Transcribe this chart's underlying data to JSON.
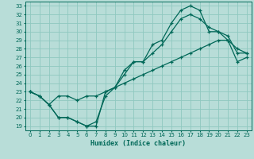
{
  "title": "",
  "xlabel": "Humidex (Indice chaleur)",
  "xlim": [
    -0.5,
    23.5
  ],
  "ylim": [
    18.5,
    33.5
  ],
  "xticks": [
    0,
    1,
    2,
    3,
    4,
    5,
    6,
    7,
    8,
    9,
    10,
    11,
    12,
    13,
    14,
    15,
    16,
    17,
    18,
    19,
    20,
    21,
    22,
    23
  ],
  "yticks": [
    19,
    20,
    21,
    22,
    23,
    24,
    25,
    26,
    27,
    28,
    29,
    30,
    31,
    32,
    33
  ],
  "bg_color": "#b8ddd8",
  "grid_color": "#8fc8c0",
  "line_color": "#006858",
  "curve1_x": [
    0,
    1,
    2,
    3,
    4,
    5,
    6,
    7,
    8,
    9,
    10,
    11,
    12,
    13,
    14,
    15,
    16,
    17,
    18,
    19,
    20,
    21,
    22,
    23
  ],
  "curve1_y": [
    23.0,
    22.5,
    21.5,
    20.0,
    20.0,
    19.5,
    19.0,
    19.0,
    23.0,
    23.5,
    25.5,
    26.5,
    26.5,
    28.5,
    29.0,
    31.0,
    32.5,
    33.0,
    32.5,
    30.0,
    30.0,
    29.5,
    27.5,
    27.5
  ],
  "curve2_x": [
    0,
    1,
    2,
    3,
    4,
    5,
    6,
    7,
    8,
    9,
    10,
    11,
    12,
    13,
    14,
    15,
    16,
    17,
    18,
    19,
    20,
    21,
    22,
    23
  ],
  "curve2_y": [
    23.0,
    22.5,
    21.5,
    20.0,
    20.0,
    19.5,
    19.0,
    19.5,
    22.5,
    23.5,
    25.0,
    26.5,
    26.5,
    27.5,
    28.5,
    30.0,
    31.5,
    32.0,
    31.5,
    30.5,
    30.0,
    29.0,
    28.0,
    27.5
  ],
  "curve3_x": [
    0,
    1,
    2,
    3,
    4,
    5,
    6,
    7,
    8,
    9,
    10,
    11,
    12,
    13,
    14,
    15,
    16,
    17,
    18,
    19,
    20,
    21,
    22,
    23
  ],
  "curve3_y": [
    23.0,
    22.5,
    21.5,
    22.5,
    22.5,
    22.0,
    22.5,
    22.5,
    23.0,
    23.5,
    24.0,
    24.5,
    25.0,
    25.5,
    26.0,
    26.5,
    27.0,
    27.5,
    28.0,
    28.5,
    29.0,
    29.0,
    26.5,
    27.0
  ]
}
